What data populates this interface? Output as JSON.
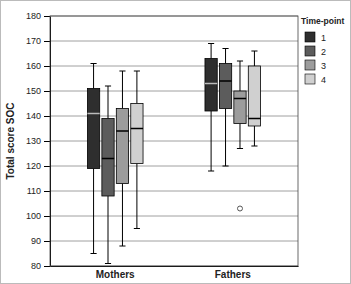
{
  "chart_data": {
    "type": "box",
    "y_label": "Total score SOC",
    "legend_title": "Time-point",
    "categories": [
      "Mothers",
      "Fathers"
    ],
    "series": [
      {
        "name": "1",
        "color": "#2e2e2e",
        "values": [
          {
            "min": 85,
            "q1": 119,
            "median": 141,
            "q3": 151,
            "max": 161
          },
          {
            "min": 118,
            "q1": 142,
            "median": 153,
            "q3": 163,
            "max": 169
          }
        ]
      },
      {
        "name": "2",
        "color": "#5c5c5c",
        "values": [
          {
            "min": 81,
            "q1": 108,
            "median": 123,
            "q3": 139,
            "max": 152
          },
          {
            "min": 120,
            "q1": 143,
            "median": 154,
            "q3": 161,
            "max": 167
          }
        ]
      },
      {
        "name": "3",
        "color": "#9c9c9c",
        "values": [
          {
            "min": 88,
            "q1": 113,
            "median": 134,
            "q3": 143,
            "max": 158
          },
          {
            "min": 127,
            "q1": 137,
            "median": 147,
            "q3": 150,
            "max": 162,
            "outliers": [
              103
            ]
          }
        ]
      },
      {
        "name": "4",
        "color": "#d0d0d0",
        "values": [
          {
            "min": 95,
            "q1": 121,
            "median": 135,
            "q3": 145,
            "max": 158
          },
          {
            "min": 128,
            "q1": 136,
            "median": 139,
            "q3": 160,
            "max": 166
          }
        ]
      }
    ],
    "ylim": [
      80,
      180
    ],
    "yticks": [
      80,
      90,
      100,
      110,
      120,
      130,
      140,
      150,
      160,
      170,
      180
    ],
    "grid": true,
    "legend": "upper right"
  }
}
